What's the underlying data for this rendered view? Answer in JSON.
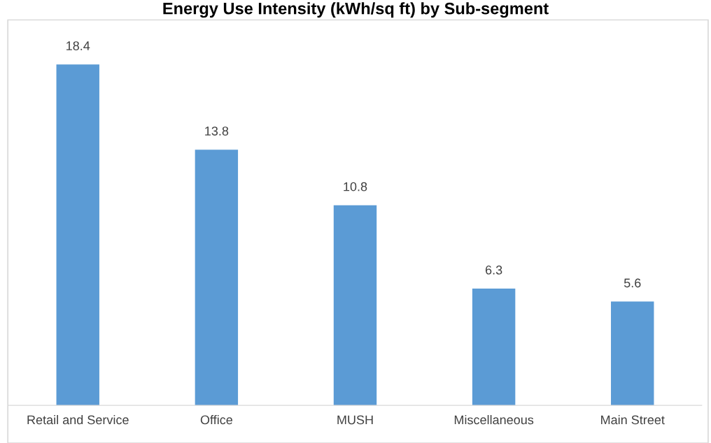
{
  "chart_data": {
    "type": "bar",
    "title": "Energy Use Intensity (kWh/sq ft) by Sub-segment",
    "categories": [
      "Retail and Service",
      "Office",
      "MUSH",
      "Miscellaneous",
      "Main Street"
    ],
    "values": [
      18.4,
      13.8,
      10.8,
      6.3,
      5.6
    ],
    "color": "#5b9bd5",
    "data_labels": true,
    "grid": false,
    "legend": false
  }
}
